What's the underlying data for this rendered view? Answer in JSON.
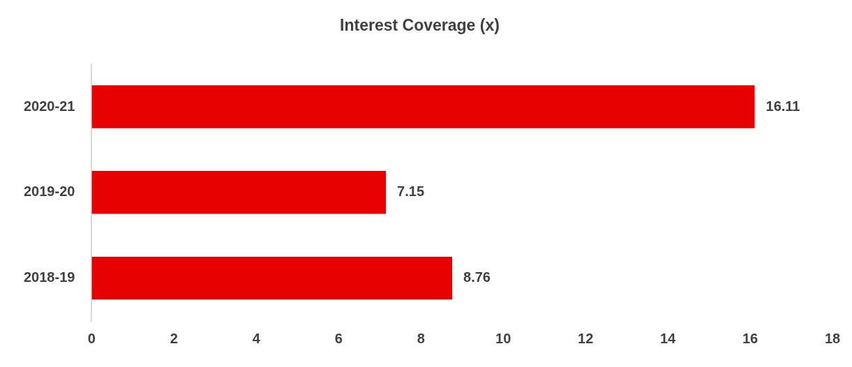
{
  "chart_data": {
    "type": "bar",
    "orientation": "horizontal",
    "title": "Interest Coverage (x)",
    "categories": [
      "2020-21",
      "2019-20",
      "2018-19"
    ],
    "values": [
      16.11,
      7.15,
      8.76
    ],
    "color": "#e80000",
    "xlim": [
      0,
      18
    ],
    "xticks": [
      0,
      2,
      4,
      6,
      8,
      10,
      12,
      14,
      16,
      18
    ],
    "grid": false,
    "legend": false,
    "data_labels": true
  }
}
